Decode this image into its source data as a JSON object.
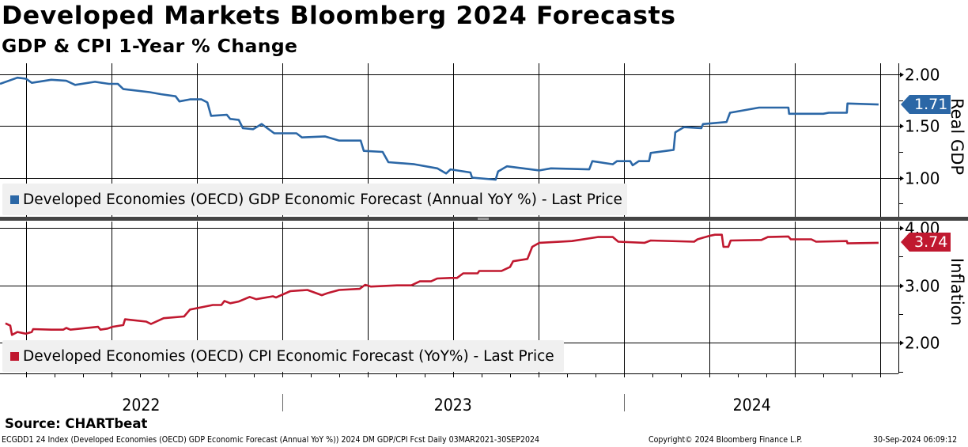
{
  "title": "Developed Markets Bloomberg 2024 Forecasts",
  "subtitle": "GDP & CPI 1-Year % Change",
  "source": "Source: CHARTbeat",
  "footer": {
    "left": "ECGDD1 24 Index (Developed Economies (OECD) GDP Economic Forecast (Annual YoY %)) 2024 DM GDP/CPI Fcst  Daily 03MAR2021-30SEP2024",
    "center": "Copyright© 2024 Bloomberg Finance L.P.",
    "right": "30-Sep-2024 06:09:12"
  },
  "colors": {
    "gdp": "#2b67a6",
    "cpi": "#c0182f"
  },
  "chart_data": [
    {
      "type": "line",
      "panel": "top",
      "ylabel": "Real GDP",
      "ylim": [
        0.62,
        2.11
      ],
      "yticks": [
        "1.00",
        "1.50",
        "2.00"
      ],
      "ytick_values": [
        1.0,
        1.5,
        2.0
      ],
      "xlim": [
        2022.174,
        2024.804
      ],
      "xtick_labels": [
        "2022",
        "2023",
        "2024"
      ],
      "grid": true,
      "legend": "bottom-left",
      "last_value_label": "1.71",
      "series": [
        {
          "name": "Developed Economies (OECD) GDP Economic Forecast (Annual YoY %) - Last Price",
          "x": [
            2022.174,
            2022.225,
            2022.25,
            2022.267,
            2022.324,
            2022.368,
            2022.394,
            2022.452,
            2022.493,
            2022.519,
            2022.535,
            2022.612,
            2022.646,
            2022.688,
            2022.699,
            2022.73,
            2022.764,
            2022.781,
            2022.792,
            2022.838,
            2022.848,
            2022.873,
            2022.885,
            2022.915,
            2022.94,
            2022.977,
            2023.042,
            2023.058,
            2023.125,
            2023.167,
            2023.23,
            2023.239,
            2023.294,
            2023.311,
            2023.387,
            2023.454,
            2023.48,
            2023.493,
            2023.551,
            2023.556,
            2023.625,
            2023.632,
            2023.658,
            2023.753,
            2023.787,
            2023.899,
            2023.908,
            2023.968,
            2023.98,
            2024.019,
            2024.026,
            2024.044,
            2024.074,
            2024.079,
            2024.146,
            2024.151,
            2024.176,
            2024.227,
            2024.232,
            2024.301,
            2024.311,
            2024.396,
            2024.482,
            2024.484,
            2024.584,
            2024.6,
            2024.653,
            2024.655,
            2024.746
          ],
          "y": [
            1.91,
            1.97,
            1.96,
            1.92,
            1.95,
            1.94,
            1.9,
            1.93,
            1.91,
            1.91,
            1.86,
            1.83,
            1.81,
            1.79,
            1.74,
            1.76,
            1.76,
            1.73,
            1.6,
            1.61,
            1.57,
            1.56,
            1.48,
            1.47,
            1.52,
            1.43,
            1.43,
            1.39,
            1.4,
            1.36,
            1.36,
            1.26,
            1.25,
            1.15,
            1.13,
            1.09,
            1.04,
            1.08,
            1.05,
            1.0,
            0.98,
            1.06,
            1.11,
            1.07,
            1.09,
            1.08,
            1.16,
            1.13,
            1.16,
            1.16,
            1.12,
            1.16,
            1.16,
            1.24,
            1.27,
            1.44,
            1.49,
            1.48,
            1.52,
            1.54,
            1.63,
            1.68,
            1.68,
            1.62,
            1.62,
            1.63,
            1.63,
            1.72,
            1.71
          ]
        }
      ]
    },
    {
      "type": "line",
      "panel": "bottom",
      "ylabel": "Inflation",
      "ylim": [
        1.47,
        4.11
      ],
      "yticks": [
        "2.00",
        "3.00",
        "4.00"
      ],
      "ytick_values": [
        2.0,
        3.0,
        4.0
      ],
      "xlim": [
        2022.174,
        2024.804
      ],
      "grid": true,
      "legend": "bottom-left",
      "last_value_label": "3.74",
      "series": [
        {
          "name": "Developed Economies (OECD) CPI Economic Forecast (YoY%) - Last Price",
          "x": [
            2022.19,
            2022.204,
            2022.209,
            2022.225,
            2022.25,
            2022.267,
            2022.271,
            2022.324,
            2022.359,
            2022.368,
            2022.38,
            2022.461,
            2022.468,
            2022.489,
            2022.503,
            2022.535,
            2022.54,
            2022.602,
            2022.616,
            2022.653,
            2022.713,
            2022.73,
            2022.764,
            2022.797,
            2022.822,
            2022.831,
            2022.848,
            2022.873,
            2022.905,
            2022.924,
            2022.973,
            2022.982,
            2023.024,
            2023.074,
            2023.116,
            2023.135,
            2023.167,
            2023.227,
            2023.243,
            2023.26,
            2023.336,
            2023.378,
            2023.403,
            2023.436,
            2023.454,
            2023.493,
            2023.512,
            2023.53,
            2023.572,
            2023.577,
            2023.642,
            2023.667,
            2023.676,
            2023.718,
            2023.732,
            2023.753,
            2023.848,
            2023.924,
            2023.968,
            2023.984,
            2024.061,
            2024.079,
            2024.206,
            2024.216,
            2024.25,
            2024.267,
            2024.287,
            2024.292,
            2024.306,
            2024.313,
            2024.403,
            2024.422,
            2024.482,
            2024.489,
            2024.549,
            2024.563,
            2024.653,
            2024.655,
            2024.746
          ],
          "y": [
            2.34,
            2.3,
            2.14,
            2.19,
            2.16,
            2.19,
            2.24,
            2.23,
            2.23,
            2.26,
            2.23,
            2.28,
            2.23,
            2.25,
            2.28,
            2.31,
            2.41,
            2.37,
            2.33,
            2.43,
            2.46,
            2.58,
            2.62,
            2.66,
            2.66,
            2.73,
            2.69,
            2.72,
            2.8,
            2.76,
            2.81,
            2.79,
            2.9,
            2.92,
            2.83,
            2.87,
            2.92,
            2.94,
            3.01,
            2.98,
            3.0,
            3.0,
            3.07,
            3.07,
            3.12,
            3.13,
            3.13,
            3.21,
            3.21,
            3.25,
            3.25,
            3.32,
            3.42,
            3.46,
            3.67,
            3.74,
            3.77,
            3.84,
            3.84,
            3.76,
            3.74,
            3.78,
            3.76,
            3.8,
            3.86,
            3.88,
            3.88,
            3.67,
            3.67,
            3.78,
            3.79,
            3.84,
            3.85,
            3.8,
            3.8,
            3.76,
            3.77,
            3.73,
            3.74
          ]
        }
      ]
    }
  ]
}
